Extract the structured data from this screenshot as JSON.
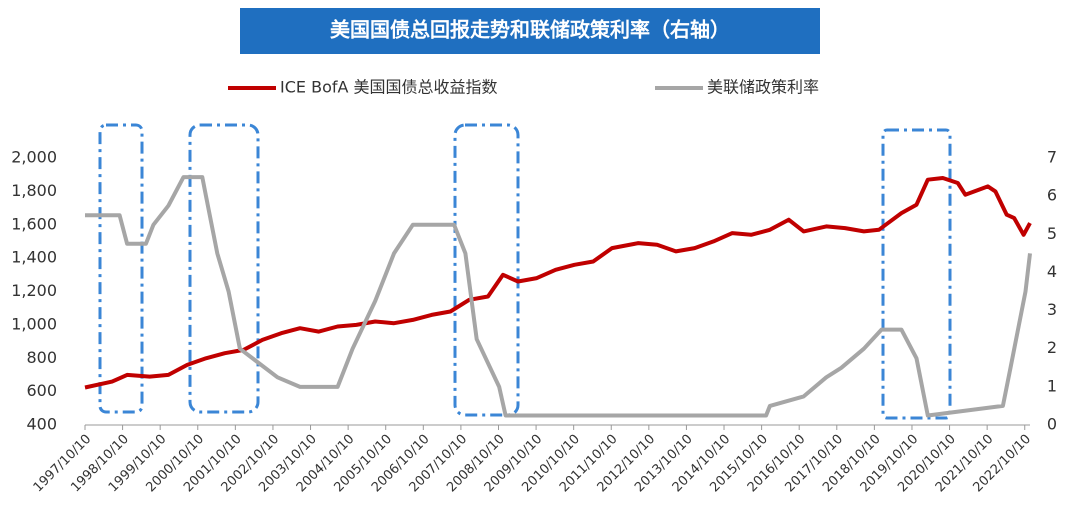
{
  "chart_data": {
    "type": "line",
    "title": "美国国债总回报走势和联储政策利率（右轴）",
    "series": [
      {
        "name": "ICE BofA 美国国债总收益指数",
        "color": "#c00000",
        "x": [
          1997.78,
          1998.5,
          1998.9,
          1999.5,
          2000.0,
          2000.5,
          2001.0,
          2001.5,
          2002.0,
          2002.5,
          2003.0,
          2003.5,
          2004.0,
          2004.5,
          2005.0,
          2005.5,
          2006.0,
          2006.5,
          2007.0,
          2007.5,
          2008.0,
          2008.5,
          2008.9,
          2009.3,
          2009.8,
          2010.3,
          2010.8,
          2011.3,
          2011.8,
          2012.5,
          2013.0,
          2013.5,
          2014.0,
          2014.5,
          2015.0,
          2015.5,
          2016.0,
          2016.5,
          2016.9,
          2017.5,
          2018.0,
          2018.5,
          2018.9,
          2019.5,
          2019.9,
          2020.2,
          2020.6,
          2021.0,
          2021.2,
          2021.8,
          2022.0,
          2022.3,
          2022.5,
          2022.75,
          2022.92
        ],
        "values": [
          625,
          660,
          700,
          690,
          700,
          760,
          800,
          830,
          850,
          910,
          950,
          980,
          960,
          990,
          1000,
          1020,
          1010,
          1030,
          1060,
          1080,
          1150,
          1170,
          1300,
          1260,
          1280,
          1330,
          1360,
          1380,
          1460,
          1490,
          1480,
          1440,
          1460,
          1500,
          1550,
          1540,
          1570,
          1630,
          1560,
          1590,
          1580,
          1560,
          1570,
          1670,
          1720,
          1870,
          1880,
          1850,
          1780,
          1830,
          1800,
          1660,
          1640,
          1540,
          1610
        ]
      },
      {
        "name": "美联储政策利率",
        "color": "#a6a6a6",
        "axis": "y2",
        "x": [
          1997.78,
          1998.7,
          1998.9,
          1999.4,
          1999.6,
          2000.0,
          2000.4,
          2000.9,
          2001.0,
          2001.3,
          2001.6,
          2001.9,
          2002.9,
          2003.5,
          2004.5,
          2004.9,
          2005.5,
          2006.0,
          2006.5,
          2007.6,
          2007.9,
          2008.2,
          2008.8,
          2008.97,
          2015.9,
          2016.0,
          2016.9,
          2017.5,
          2017.9,
          2018.5,
          2018.97,
          2019.5,
          2019.9,
          2020.2,
          2022.2,
          2022.4,
          2022.6,
          2022.8,
          2022.92
        ],
        "values": [
          5.5,
          5.5,
          4.75,
          4.75,
          5.25,
          5.75,
          6.5,
          6.5,
          6.0,
          4.5,
          3.5,
          2.0,
          1.25,
          1.0,
          1.0,
          2.0,
          3.25,
          4.5,
          5.25,
          5.25,
          4.5,
          2.25,
          1.0,
          0.25,
          0.25,
          0.5,
          0.75,
          1.25,
          1.5,
          2.0,
          2.5,
          2.5,
          1.75,
          0.25,
          0.5,
          1.5,
          2.5,
          3.5,
          4.5
        ]
      }
    ],
    "xlim": [
      1997.78,
      2022.92
    ],
    "xticks": [
      {
        "value": 1997.78,
        "label": "1997/10/10"
      },
      {
        "value": 1998.78,
        "label": "1998/10/10"
      },
      {
        "value": 1999.78,
        "label": "1999/10/10"
      },
      {
        "value": 2000.78,
        "label": "2000/10/10"
      },
      {
        "value": 2001.78,
        "label": "2001/10/10"
      },
      {
        "value": 2002.78,
        "label": "2002/10/10"
      },
      {
        "value": 2003.78,
        "label": "2003/10/10"
      },
      {
        "value": 2004.78,
        "label": "2004/10/10"
      },
      {
        "value": 2005.78,
        "label": "2005/10/10"
      },
      {
        "value": 2006.78,
        "label": "2006/10/10"
      },
      {
        "value": 2007.78,
        "label": "2007/10/10"
      },
      {
        "value": 2008.78,
        "label": "2008/10/10"
      },
      {
        "value": 2009.78,
        "label": "2009/10/10"
      },
      {
        "value": 2010.78,
        "label": "2010/10/10"
      },
      {
        "value": 2011.78,
        "label": "2011/10/10"
      },
      {
        "value": 2012.78,
        "label": "2012/10/10"
      },
      {
        "value": 2013.78,
        "label": "2013/10/10"
      },
      {
        "value": 2014.78,
        "label": "2014/10/10"
      },
      {
        "value": 2015.78,
        "label": "2015/10/10"
      },
      {
        "value": 2016.78,
        "label": "2016/10/10"
      },
      {
        "value": 2017.78,
        "label": "2017/10/10"
      },
      {
        "value": 2018.78,
        "label": "2018/10/10"
      },
      {
        "value": 2019.78,
        "label": "2019/10/10"
      },
      {
        "value": 2020.78,
        "label": "2020/10/10"
      },
      {
        "value": 2021.78,
        "label": "2021/10/10"
      },
      {
        "value": 2022.78,
        "label": "2022/10/10"
      }
    ],
    "ylim": [
      400,
      2000
    ],
    "yticks": [
      400,
      600,
      800,
      {
        "value": 1000,
        "label": "1,000"
      },
      {
        "value": 1200,
        "label": "1,200"
      },
      {
        "value": 1400,
        "label": "1,400"
      },
      {
        "value": 1600,
        "label": "1,600"
      },
      {
        "value": 1800,
        "label": "1,800"
      },
      {
        "value": 2000,
        "label": "2,000"
      }
    ],
    "y2lim": [
      0,
      7
    ],
    "y2ticks": [
      0,
      1,
      2,
      3,
      4,
      5,
      6,
      7
    ],
    "grid": false,
    "legend": "top"
  }
}
